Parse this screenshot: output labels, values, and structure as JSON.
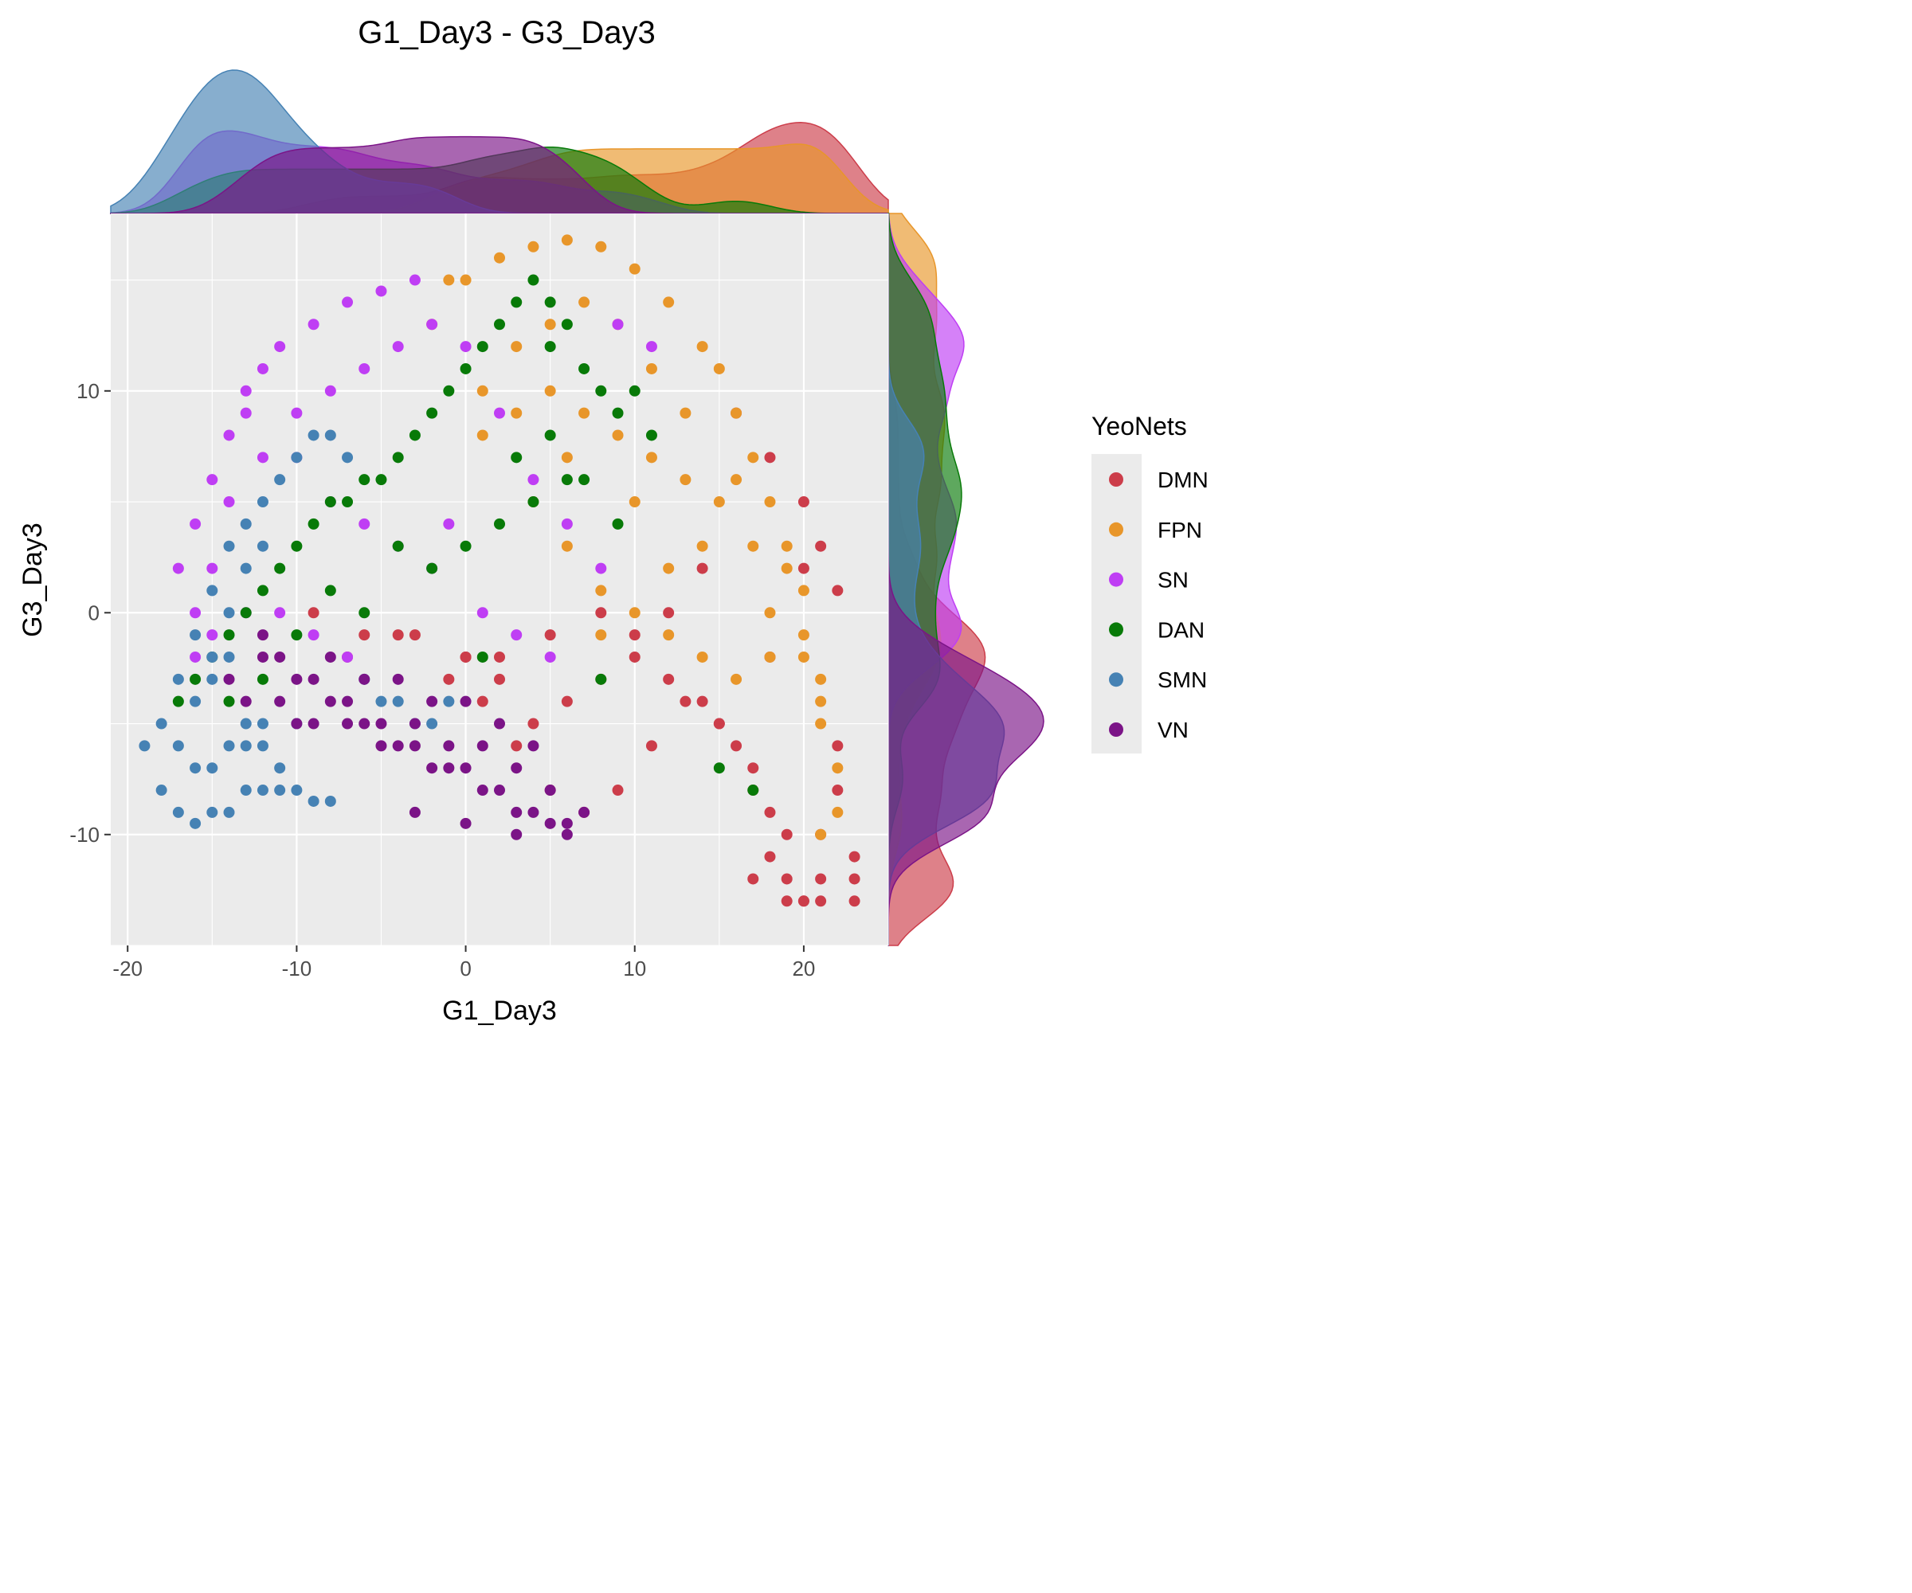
{
  "chart_data": {
    "type": "scatter",
    "title": "G1_Day3 - G3_Day3",
    "xlabel": "G1_Day3",
    "ylabel": "G3_Day3",
    "xlim": [
      -21,
      25
    ],
    "ylim": [
      -15,
      18
    ],
    "xticks": [
      -20,
      -10,
      0,
      10,
      20
    ],
    "yticks": [
      -10,
      0,
      10
    ],
    "xtick_labels": [
      "-20",
      "-10",
      "0",
      "10",
      "20"
    ],
    "ytick_labels": [
      "-10",
      "0",
      "10"
    ],
    "grid": true,
    "marginal_plots": "density (top: G1_Day3, right: G3_Day3)",
    "legend": {
      "title": "YeoNets",
      "placement": "right",
      "entries": [
        "DMN",
        "FPN",
        "SN",
        "DAN",
        "SMN",
        "VN"
      ]
    },
    "series": [
      {
        "name": "DMN",
        "color": "#CC3D4A",
        "x": [
          -9,
          -6,
          -3,
          0,
          2,
          5,
          8,
          10,
          12,
          14,
          15,
          16,
          17,
          18,
          18,
          19,
          20,
          20,
          21,
          21,
          22,
          22,
          23,
          23,
          19,
          17,
          15,
          13,
          11,
          9,
          7,
          5,
          3,
          1,
          -1,
          -4,
          -7,
          22,
          21,
          20,
          18,
          16,
          14,
          12,
          10,
          8,
          6,
          4,
          2,
          0,
          17,
          19,
          21,
          23,
          20,
          18
        ],
        "y": [
          0,
          -1,
          -1,
          -2,
          -2,
          -1,
          0,
          -2,
          -3,
          -4,
          -5,
          -6,
          -8,
          -9,
          -11,
          -12,
          -13,
          -13,
          -12,
          -10,
          -8,
          -6,
          -11,
          -13,
          -10,
          -7,
          -5,
          -4,
          -6,
          -8,
          -9,
          -8,
          -6,
          -4,
          -3,
          -1,
          -2,
          1,
          3,
          5,
          7,
          9,
          2,
          0,
          -1,
          -3,
          -4,
          -5,
          -3,
          -2,
          -12,
          -13,
          -13,
          -12,
          2,
          -2
        ]
      },
      {
        "name": "FPN",
        "color": "#E8962A",
        "x": [
          0,
          2,
          4,
          6,
          8,
          10,
          12,
          14,
          15,
          16,
          17,
          18,
          19,
          20,
          20,
          21,
          21,
          22,
          3,
          5,
          7,
          9,
          11,
          13,
          1,
          3,
          5,
          7,
          9,
          11,
          13,
          15,
          17,
          19,
          -2,
          -1,
          1,
          4,
          6,
          8,
          10,
          12,
          14,
          16,
          18,
          20,
          21,
          6,
          10,
          14,
          18,
          22,
          8,
          12,
          16,
          21
        ],
        "y": [
          15,
          16,
          16.5,
          16.8,
          16.5,
          15.5,
          14,
          12,
          11,
          9,
          7,
          5,
          3,
          1,
          -1,
          -3,
          -5,
          -7,
          12,
          13,
          14,
          13,
          11,
          9,
          8,
          9,
          10,
          9,
          8,
          7,
          6,
          5,
          3,
          2,
          13,
          15,
          10,
          5,
          3,
          1,
          0,
          -1,
          -2,
          -3,
          -2,
          -2,
          -4,
          7,
          5,
          3,
          0,
          -9,
          -1,
          2,
          6,
          -10
        ]
      },
      {
        "name": "SN",
        "color": "#BF3EF4",
        "x": [
          -3,
          -5,
          -7,
          -9,
          -11,
          -13,
          -14,
          -15,
          -16,
          -17,
          -4,
          -6,
          -8,
          -10,
          -12,
          -14,
          -15,
          -16,
          -2,
          0,
          2,
          4,
          6,
          8,
          -12,
          -13,
          -10,
          -8,
          -6,
          -4,
          -2,
          -11,
          -9,
          -7,
          -13,
          -15,
          -16,
          1,
          3,
          5,
          -1,
          9,
          11
        ],
        "y": [
          15,
          14.5,
          14,
          13,
          12,
          10,
          8,
          6,
          4,
          2,
          12,
          11,
          10,
          9,
          7,
          5,
          2,
          0,
          13,
          12,
          9,
          6,
          4,
          2,
          11,
          9,
          7,
          5,
          4,
          3,
          2,
          0,
          -1,
          -2,
          0,
          -1,
          -2,
          0,
          -1,
          -2,
          4,
          13,
          12
        ]
      },
      {
        "name": "DAN",
        "color": "#087A08",
        "x": [
          4,
          5,
          6,
          3,
          2,
          1,
          0,
          -1,
          -2,
          -3,
          -4,
          -5,
          -6,
          -7,
          -8,
          -9,
          -10,
          -11,
          -12,
          -13,
          -14,
          -15,
          -16,
          -17,
          7,
          8,
          9,
          10,
          11,
          -4,
          -2,
          0,
          2,
          4,
          6,
          -6,
          -8,
          -10,
          3,
          5,
          7,
          9,
          -12,
          -14,
          15,
          17,
          1,
          8,
          5
        ],
        "y": [
          15,
          14,
          13,
          14,
          13,
          12,
          11,
          10,
          9,
          8,
          7,
          6,
          6,
          5,
          5,
          4,
          3,
          2,
          1,
          0,
          -1,
          -2,
          -3,
          -4,
          11,
          10,
          9,
          10,
          8,
          3,
          2,
          3,
          4,
          5,
          6,
          0,
          1,
          -1,
          7,
          8,
          6,
          4,
          -3,
          -4,
          -7,
          -8,
          -2,
          -3,
          12
        ]
      },
      {
        "name": "SMN",
        "color": "#4682B4",
        "x": [
          -19,
          -18,
          -17,
          -16,
          -15,
          -14,
          -13,
          -12,
          -11,
          -10,
          -9,
          -8,
          -18,
          -17,
          -16,
          -15,
          -14,
          -13,
          -12,
          -17,
          -16,
          -15,
          -14,
          -13,
          -12,
          -11,
          -10,
          -9,
          -8,
          -7,
          -6,
          -5,
          -4,
          -3,
          -2,
          -1,
          -16,
          -15,
          -14,
          -13,
          -12,
          -11,
          -10,
          -14,
          -13,
          -15,
          -12
        ],
        "y": [
          -6,
          -8,
          -9,
          -9.5,
          -9,
          -9,
          -8,
          -8,
          -8,
          -8,
          -8.5,
          -8.5,
          -5,
          -6,
          -7,
          -7,
          -6,
          -6,
          -5,
          -3,
          -1,
          1,
          3,
          4,
          5,
          6,
          7,
          8,
          8,
          7,
          -3,
          -4,
          -4,
          -5,
          -5,
          -4,
          -4,
          -3,
          -2,
          -5,
          -6,
          -7,
          -5,
          0,
          2,
          -2,
          3
        ]
      },
      {
        "name": "VN",
        "color": "#7B1487",
        "x": [
          -14,
          -12,
          -11,
          -10,
          -9,
          -8,
          -7,
          -6,
          -5,
          -4,
          -3,
          -2,
          -1,
          0,
          1,
          2,
          3,
          4,
          5,
          6,
          7,
          -13,
          -11,
          -9,
          -7,
          -5,
          -3,
          -1,
          1,
          3,
          5,
          -8,
          -6,
          -4,
          -2,
          0,
          2,
          4,
          -10,
          -12,
          -3,
          0,
          3,
          6
        ],
        "y": [
          -3,
          -2,
          -2,
          -3,
          -3,
          -4,
          -4,
          -5,
          -5,
          -6,
          -6,
          -7,
          -7,
          -7,
          -8,
          -8,
          -9,
          -9,
          -9.5,
          -9.5,
          -9,
          -4,
          -4,
          -5,
          -5,
          -6,
          -5,
          -6,
          -6,
          -7,
          -8,
          -2,
          -3,
          -3,
          -4,
          -4,
          -5,
          -6,
          -5,
          -1,
          -9,
          -9.5,
          -10,
          -10
        ]
      }
    ]
  }
}
